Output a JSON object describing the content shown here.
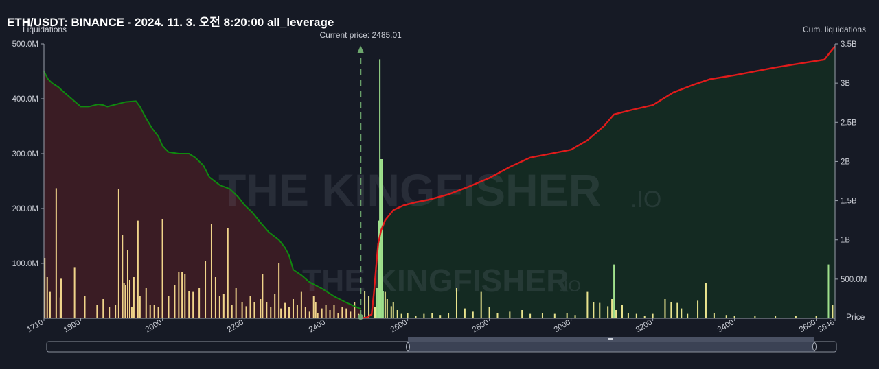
{
  "header": {
    "title": "ETH/USDT: BINANCE - 2024. 11. 3. 오전 8:20:00 all_leverage"
  },
  "watermark": {
    "brand": "THE KINGFISHER",
    "suffix": ".IO"
  },
  "colors": {
    "background": "#161a25",
    "short_cum_line": "#0f8a0f",
    "long_cum_line": "#e01b1b",
    "left_area_fill": "#3a1c24",
    "right_area_fill": "#142a22",
    "bar_left": "#f0d48a",
    "bar_right": "#e9e48e",
    "bar_green": "#9fe08c",
    "current_price_line": "#6ea86e"
  },
  "chart_data": {
    "type": "bar+line",
    "title": "ETH/USDT: BINANCE - 2024. 11. 3. 오전 8:20:00 all_leverage",
    "current_price_label": "Current price: 2485.01",
    "current_price": 2485.01,
    "x_axis": {
      "label": "Price",
      "range": [
        1710,
        3646
      ],
      "ticks": [
        "1710",
        "1800",
        "2000",
        "2200",
        "2400",
        "2600",
        "2800",
        "3000",
        "3200",
        "3400",
        "3600",
        "3646"
      ]
    },
    "y_left": {
      "label": "Liquidations",
      "range": [
        0,
        500
      ],
      "ticks": [
        "100.0M",
        "200.0M",
        "300.0M",
        "400.0M",
        "500.0M"
      ]
    },
    "y_right": {
      "label": "Cum. liquidations",
      "range": [
        0,
        3.5
      ],
      "ticks": [
        "500.0M",
        "1B",
        "1.5B",
        "2B",
        "2.5B",
        "3B",
        "3.5B"
      ]
    },
    "series": [
      {
        "kind": "cumulative-line",
        "axis": "right",
        "points": [
          [
            1710,
            3.15
          ],
          [
            1720,
            3.05
          ],
          [
            1730,
            3.0
          ],
          [
            1745,
            2.95
          ],
          [
            1760,
            2.88
          ],
          [
            1800,
            2.7
          ],
          [
            1820,
            2.7
          ],
          [
            1842,
            2.73
          ],
          [
            1855,
            2.72
          ],
          [
            1865,
            2.7
          ],
          [
            1880,
            2.72
          ],
          [
            1910,
            2.76
          ],
          [
            1935,
            2.77
          ],
          [
            1945,
            2.7
          ],
          [
            1960,
            2.55
          ],
          [
            1975,
            2.42
          ],
          [
            1990,
            2.32
          ],
          [
            2000,
            2.2
          ],
          [
            2015,
            2.12
          ],
          [
            2040,
            2.1
          ],
          [
            2065,
            2.1
          ],
          [
            2080,
            2.05
          ],
          [
            2100,
            1.95
          ],
          [
            2115,
            1.8
          ],
          [
            2140,
            1.7
          ],
          [
            2165,
            1.65
          ],
          [
            2185,
            1.55
          ],
          [
            2200,
            1.45
          ],
          [
            2220,
            1.35
          ],
          [
            2240,
            1.22
          ],
          [
            2260,
            1.1
          ],
          [
            2285,
            1.0
          ],
          [
            2300,
            0.9
          ],
          [
            2310,
            0.8
          ],
          [
            2320,
            0.62
          ],
          [
            2340,
            0.55
          ],
          [
            2360,
            0.46
          ],
          [
            2390,
            0.38
          ],
          [
            2420,
            0.28
          ],
          [
            2450,
            0.2
          ],
          [
            2485,
            0.12
          ]
        ]
      },
      {
        "kind": "cumulative-line",
        "axis": "right",
        "points": [
          [
            2485,
            0.0
          ],
          [
            2500,
            0.01
          ],
          [
            2512,
            0.05
          ],
          [
            2518,
            0.35
          ],
          [
            2522,
            0.6
          ],
          [
            2528,
            0.95
          ],
          [
            2535,
            1.12
          ],
          [
            2545,
            1.25
          ],
          [
            2565,
            1.38
          ],
          [
            2590,
            1.44
          ],
          [
            2620,
            1.48
          ],
          [
            2650,
            1.51
          ],
          [
            2700,
            1.58
          ],
          [
            2750,
            1.68
          ],
          [
            2800,
            1.79
          ],
          [
            2850,
            1.93
          ],
          [
            2900,
            2.05
          ],
          [
            2950,
            2.1
          ],
          [
            3000,
            2.15
          ],
          [
            3040,
            2.27
          ],
          [
            3080,
            2.45
          ],
          [
            3105,
            2.6
          ],
          [
            3150,
            2.66
          ],
          [
            3200,
            2.72
          ],
          [
            3250,
            2.88
          ],
          [
            3300,
            2.98
          ],
          [
            3340,
            3.05
          ],
          [
            3400,
            3.1
          ],
          [
            3500,
            3.2
          ],
          [
            3620,
            3.3
          ],
          [
            3635,
            3.4
          ],
          [
            3646,
            3.47
          ]
        ]
      },
      {
        "kind": "bars",
        "axis": "left",
        "name": "",
        "points": [
          [
            1712,
            110
          ],
          [
            1718,
            75
          ],
          [
            1725,
            48
          ],
          [
            1740,
            237
          ],
          [
            1750,
            38
          ],
          [
            1752,
            72
          ],
          [
            1785,
            92
          ],
          [
            1810,
            40
          ],
          [
            1840,
            25
          ],
          [
            1855,
            35
          ],
          [
            1870,
            20
          ],
          [
            1885,
            24
          ],
          [
            1893,
            235
          ],
          [
            1902,
            152
          ],
          [
            1906,
            65
          ],
          [
            1910,
            60
          ],
          [
            1915,
            125
          ],
          [
            1920,
            70
          ],
          [
            1925,
            20
          ],
          [
            1930,
            75
          ],
          [
            1940,
            178
          ],
          [
            1945,
            40
          ],
          [
            1960,
            55
          ],
          [
            1970,
            25
          ],
          [
            1980,
            25
          ],
          [
            1990,
            20
          ],
          [
            2000,
            180
          ],
          [
            2015,
            40
          ],
          [
            2030,
            60
          ],
          [
            2040,
            85
          ],
          [
            2048,
            85
          ],
          [
            2055,
            80
          ],
          [
            2065,
            50
          ],
          [
            2075,
            48
          ],
          [
            2090,
            55
          ],
          [
            2105,
            105
          ],
          [
            2120,
            172
          ],
          [
            2130,
            75
          ],
          [
            2140,
            40
          ],
          [
            2150,
            45
          ],
          [
            2160,
            165
          ],
          [
            2170,
            25
          ],
          [
            2180,
            55
          ],
          [
            2195,
            30
          ],
          [
            2205,
            22
          ],
          [
            2215,
            40
          ],
          [
            2225,
            30
          ],
          [
            2240,
            35
          ],
          [
            2245,
            80
          ],
          [
            2255,
            30
          ],
          [
            2265,
            20
          ],
          [
            2275,
            45
          ],
          [
            2285,
            100
          ],
          [
            2290,
            18
          ],
          [
            2300,
            28
          ],
          [
            2310,
            20
          ],
          [
            2320,
            35
          ],
          [
            2330,
            25
          ],
          [
            2340,
            48
          ],
          [
            2350,
            20
          ],
          [
            2360,
            12
          ],
          [
            2370,
            40
          ],
          [
            2375,
            30
          ],
          [
            2380,
            10
          ],
          [
            2390,
            18
          ],
          [
            2400,
            25
          ],
          [
            2410,
            15
          ],
          [
            2420,
            24
          ],
          [
            2430,
            10
          ],
          [
            2440,
            20
          ],
          [
            2450,
            18
          ],
          [
            2460,
            12
          ],
          [
            2470,
            30
          ],
          [
            2480,
            8
          ]
        ]
      },
      {
        "kind": "bars",
        "axis": "right-side",
        "name": "",
        "points": [
          [
            2495,
            50
          ],
          [
            2505,
            40
          ],
          [
            2520,
            20
          ],
          [
            2525,
            55
          ],
          [
            2530,
            178
          ],
          [
            2535,
            290
          ],
          [
            2540,
            50
          ],
          [
            2545,
            48
          ],
          [
            2550,
            35
          ],
          [
            2560,
            22
          ],
          [
            2565,
            30
          ],
          [
            2575,
            15
          ],
          [
            2585,
            8
          ],
          [
            2600,
            10
          ],
          [
            2620,
            5
          ],
          [
            2640,
            8
          ],
          [
            2660,
            10
          ],
          [
            2680,
            6
          ],
          [
            2700,
            10
          ],
          [
            2720,
            55
          ],
          [
            2740,
            18
          ],
          [
            2760,
            12
          ],
          [
            2780,
            48
          ],
          [
            2800,
            20
          ],
          [
            2820,
            10
          ],
          [
            2850,
            12
          ],
          [
            2880,
            15
          ],
          [
            2900,
            8
          ],
          [
            2930,
            10
          ],
          [
            2960,
            8
          ],
          [
            2990,
            10
          ],
          [
            3010,
            6
          ],
          [
            3040,
            48
          ],
          [
            3055,
            30
          ],
          [
            3070,
            28
          ],
          [
            3090,
            22
          ],
          [
            3100,
            35
          ],
          [
            3110,
            15
          ],
          [
            3125,
            25
          ],
          [
            3140,
            10
          ],
          [
            3160,
            8
          ],
          [
            3180,
            5
          ],
          [
            3200,
            8
          ],
          [
            3230,
            35
          ],
          [
            3245,
            30
          ],
          [
            3260,
            28
          ],
          [
            3270,
            18
          ],
          [
            3285,
            8
          ],
          [
            3310,
            32
          ],
          [
            3330,
            65
          ],
          [
            3350,
            10
          ],
          [
            3380,
            6
          ],
          [
            3400,
            5
          ],
          [
            3450,
            4
          ],
          [
            3500,
            5
          ],
          [
            3550,
            4
          ],
          [
            3600,
            5
          ],
          [
            3640,
            25
          ]
        ]
      },
      {
        "kind": "bars",
        "axis": "left",
        "name": "",
        "points": [
          [
            2532,
            472
          ],
          [
            2538,
            290
          ],
          [
            3105,
            98
          ],
          [
            3630,
            98
          ]
        ]
      }
    ]
  }
}
